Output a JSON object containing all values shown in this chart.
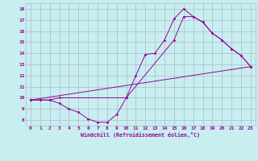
{
  "xlabel": "Windchill (Refroidissement éolien,°C)",
  "background_color": "#c8eef0",
  "grid_color": "#aabbcc",
  "line_color": "#990099",
  "xlim": [
    -0.5,
    23.5
  ],
  "ylim": [
    7.5,
    18.5
  ],
  "yticks": [
    8,
    9,
    10,
    11,
    12,
    13,
    14,
    15,
    16,
    17,
    18
  ],
  "xticks": [
    0,
    1,
    2,
    3,
    4,
    5,
    6,
    7,
    8,
    9,
    10,
    11,
    12,
    13,
    14,
    15,
    16,
    17,
    18,
    19,
    20,
    21,
    22,
    23
  ],
  "line1_x": [
    0,
    1,
    2,
    3,
    4,
    5,
    6,
    7,
    8,
    9,
    10,
    11,
    12,
    13,
    14,
    15,
    16,
    17,
    18,
    19,
    20,
    21,
    22,
    23
  ],
  "line1_y": [
    9.8,
    9.8,
    9.8,
    9.5,
    9.0,
    8.7,
    8.1,
    7.8,
    7.8,
    8.5,
    10.0,
    12.0,
    13.9,
    14.0,
    15.2,
    17.1,
    18.0,
    17.3,
    16.8,
    15.8,
    15.2,
    14.4,
    13.8,
    12.8
  ],
  "line2_x": [
    0,
    1,
    2,
    3,
    10,
    15,
    16,
    17,
    18,
    19,
    20,
    21,
    22,
    23
  ],
  "line2_y": [
    9.8,
    9.8,
    9.8,
    10.0,
    10.0,
    15.2,
    17.3,
    17.3,
    16.8,
    15.8,
    15.2,
    14.4,
    13.8,
    12.8
  ],
  "line3_x": [
    0,
    23
  ],
  "line3_y": [
    9.8,
    12.8
  ]
}
